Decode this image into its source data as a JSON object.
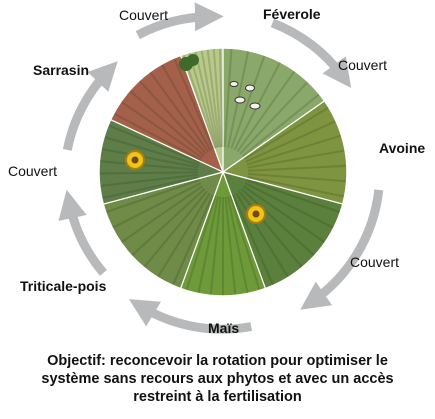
{
  "labels": {
    "feverole": "Féverole",
    "avoine": "Avoine",
    "mais": "Maïs",
    "triticale_pois": "Triticale-pois",
    "sarrasin": "Sarrasin",
    "couvert": "Couvert"
  },
  "caption": {
    "line1": "Objectif: reconcevoir la rotation pour optimiser le",
    "line2": "système sans recours aux phytos et avec un accès",
    "line3": "restreint à la fertilisation"
  },
  "colors": {
    "arrow": "#b7b9bb",
    "sky": "#dfe8ee",
    "grass": "#5f8a3a",
    "wheat": "#8f9a46",
    "buckwheat": "#a4604a"
  }
}
